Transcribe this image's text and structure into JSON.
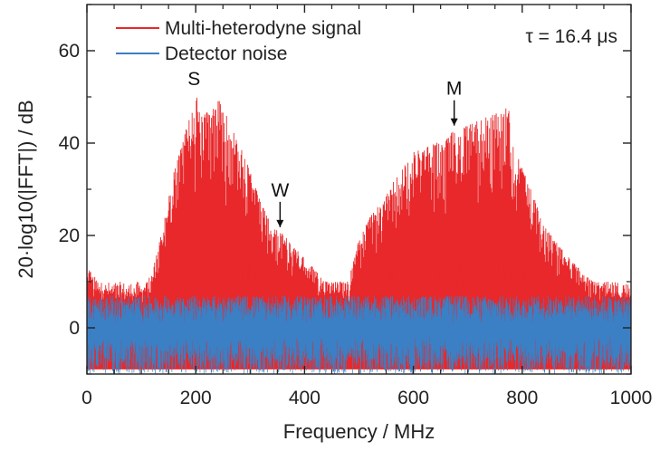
{
  "chart_data": {
    "type": "line",
    "title": "",
    "xlabel": "Frequency / MHz",
    "ylabel": "20·log10(|FFT|) / dB",
    "xlim": [
      0,
      1000
    ],
    "ylim": [
      -10,
      70
    ],
    "xticks": [
      0,
      200,
      400,
      600,
      800,
      1000
    ],
    "yticks": [
      0,
      20,
      40,
      60
    ],
    "grid": false,
    "legend_position": "top-left",
    "annotation_text": "τ = 16.4 μs",
    "colors": {
      "signal": "#e8282b",
      "noise": "#3b7fc4",
      "axes": "#222222"
    },
    "series": [
      {
        "name": "Multi-heterodyne signal",
        "color": "#e8282b",
        "style": "dense comb of spectral lines above a noise floor",
        "envelope_x": [
          0,
          20,
          60,
          100,
          120,
          140,
          160,
          180,
          195,
          200,
          215,
          230,
          245,
          260,
          280,
          300,
          320,
          340,
          355,
          370,
          400,
          440,
          480,
          500,
          520,
          540,
          560,
          600,
          640,
          680,
          700,
          720,
          740,
          760,
          775,
          780,
          800,
          820,
          840,
          880,
          920,
          960,
          1000
        ],
        "envelope_y": [
          14,
          10,
          6,
          8,
          12,
          22,
          34,
          42,
          49,
          51,
          46,
          48,
          50,
          45,
          40,
          34,
          27,
          22,
          21,
          19,
          15,
          10,
          10,
          19,
          24,
          27,
          31,
          38,
          40,
          43,
          44,
          45,
          46,
          47,
          48,
          40,
          35,
          29,
          22,
          16,
          11,
          8,
          6
        ],
        "floor_region_y": [
          5,
          10
        ]
      },
      {
        "name": "Detector noise",
        "color": "#3b7fc4",
        "style": "broadband noise",
        "mean_y": 0,
        "range_y": [
          -10,
          7
        ]
      }
    ],
    "annotations": [
      {
        "label": "S",
        "x": 200,
        "y": 51,
        "arrow": false
      },
      {
        "label": "W",
        "x": 355,
        "y": 21,
        "arrow": true
      },
      {
        "label": "M",
        "x": 675,
        "y": 43,
        "arrow": true
      }
    ]
  }
}
